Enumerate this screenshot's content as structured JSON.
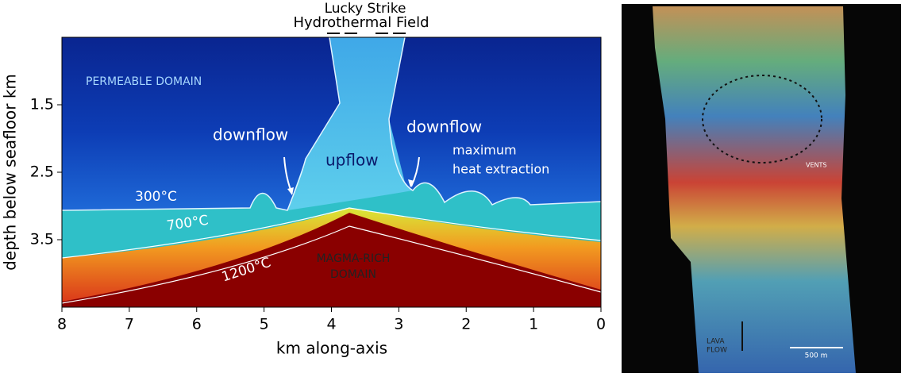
{
  "left_panel": {
    "title_line1": "Lucky Strike",
    "title_line2": "Hydrothermal Field",
    "xlabel": "km along-axis",
    "ylabel": "depth below seafloor km",
    "xlim": [
      8,
      0
    ],
    "xticks": [
      8,
      7,
      6,
      5,
      4,
      3,
      2,
      1,
      0
    ],
    "ylim": [
      0.5,
      4.5
    ],
    "yticks": [
      1.5,
      2.5,
      3.5
    ],
    "annotations": {
      "permeable": "PERMEABLE DOMAIN",
      "downflow_left": "downflow",
      "downflow_right": "downflow",
      "upflow": "upflow",
      "max1": "maximum",
      "max2": "heat extraction",
      "t300": "300°C",
      "t700": "700°C",
      "t1200": "1200°C",
      "magma1": "MAGMA-RICH",
      "magma2": "DOMAIN"
    }
  },
  "right_panel": {
    "vents": "VENTS",
    "lava1": "LAVA",
    "lava2": "FLOW",
    "scale": "500 m"
  }
}
